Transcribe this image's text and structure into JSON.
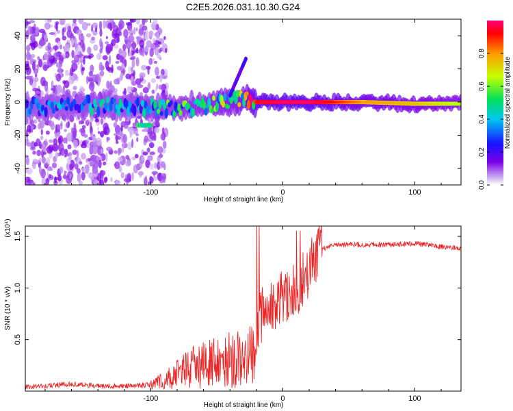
{
  "title": "C2E5.2026.031.10.30.G24",
  "chart_data": [
    {
      "type": "heatmap",
      "xlabel": "Height of straight line (km)",
      "ylabel": "Frequency (Hz)",
      "xlim": [
        -195,
        135
      ],
      "ylim": [
        -50,
        50
      ],
      "x_tick_labels": [
        "-100",
        "0",
        "100"
      ],
      "x_tick_values": [
        -100,
        0,
        100
      ],
      "y_tick_labels": [
        "40",
        "20",
        "0",
        "-20",
        "-40"
      ],
      "y_tick_values": [
        40,
        20,
        0,
        -20,
        -40
      ],
      "colorbar": {
        "label": "Normalized spectral amplitude",
        "range": [
          0,
          1
        ],
        "tick_labels": [
          "0.0",
          "0.2",
          "0.4",
          "0.6",
          "0.8"
        ],
        "tick_values": [
          0,
          0.2,
          0.4,
          0.6,
          0.8
        ],
        "colors": [
          "#ffffff",
          "#c9a6ef",
          "#7b00e6",
          "#1a10ff",
          "#00c8f0",
          "#00e05a",
          "#c8ff00",
          "#ff9900",
          "#ff0000",
          "#ff0077"
        ]
      },
      "ridge": {
        "x": [
          -195,
          -150,
          -110,
          -100,
          -80,
          -60,
          -40,
          -30,
          -20,
          0,
          20,
          60,
          100,
          135
        ],
        "freq": [
          -3,
          -2,
          -3,
          -3,
          -4,
          -2,
          0,
          2,
          0,
          0,
          0,
          0,
          -1,
          -1
        ],
        "amplitude": [
          0.3,
          0.35,
          0.35,
          0.4,
          0.45,
          0.5,
          0.55,
          0.6,
          0.9,
          0.95,
          0.95,
          0.75,
          0.7,
          0.6
        ]
      },
      "features": [
        {
          "x_start": -110,
          "x_end": -100,
          "freq": -14,
          "amplitude": 0.5
        },
        {
          "x_start": -40,
          "x_end": -28,
          "freq_start": 4,
          "freq_end": 26,
          "amplitude": 0.2
        }
      ]
    },
    {
      "type": "line",
      "xlabel": "Height of straight line (km)",
      "ylabel": "SNR (10 * v/v)",
      "y_multiplier": "(x10⁴)",
      "xlim": [
        -195,
        135
      ],
      "ylim": [
        0,
        1.6
      ],
      "x_tick_labels": [
        "-100",
        "0",
        "100"
      ],
      "x_tick_values": [
        -100,
        0,
        100
      ],
      "y_tick_labels": [
        "1.5",
        "1.0",
        "0.5"
      ],
      "y_tick_values": [
        1.5,
        1.0,
        0.5
      ],
      "series": [
        {
          "name": "SNR",
          "color": "#ee2222",
          "x": [
            -195,
            -180,
            -160,
            -140,
            -120,
            -100,
            -90,
            -80,
            -70,
            -60,
            -50,
            -40,
            -30,
            -22,
            -20,
            -18,
            -15,
            -10,
            -5,
            0,
            5,
            10,
            15,
            20,
            25,
            30,
            40,
            60,
            80,
            100,
            120,
            135
          ],
          "y": [
            0.04,
            0.05,
            0.07,
            0.05,
            0.05,
            0.06,
            0.1,
            0.16,
            0.22,
            0.26,
            0.28,
            0.3,
            0.32,
            0.34,
            0.6,
            0.68,
            0.75,
            0.82,
            0.86,
            0.9,
            0.95,
            1.0,
            1.08,
            1.18,
            1.3,
            1.38,
            1.42,
            1.42,
            1.42,
            1.43,
            1.4,
            1.38
          ]
        }
      ]
    }
  ]
}
